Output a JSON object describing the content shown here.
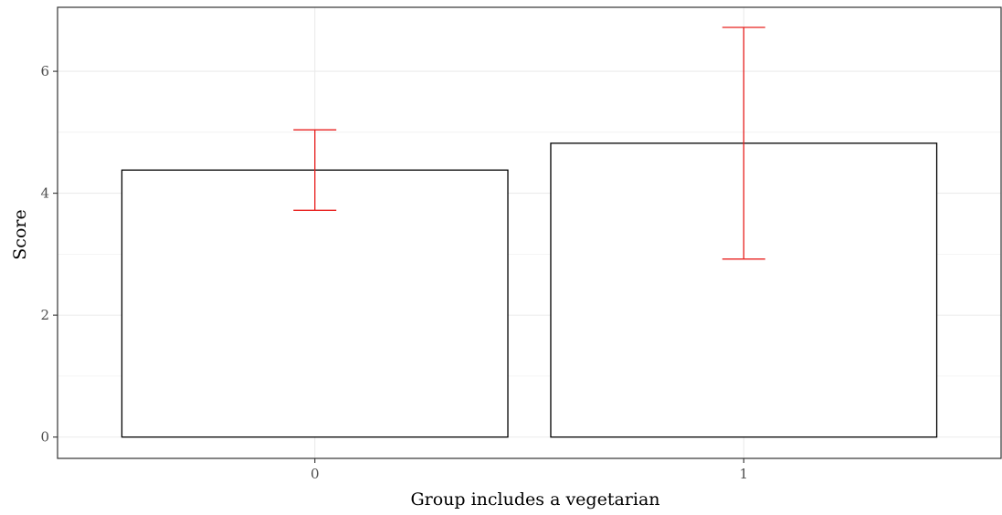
{
  "chart_data": {
    "type": "bar",
    "title": "",
    "xlabel": "Group includes a vegetarian",
    "ylabel": "Score",
    "categories": [
      "0",
      "1"
    ],
    "values": [
      4.38,
      4.82
    ],
    "error_bars": [
      {
        "low": 3.72,
        "high": 5.04
      },
      {
        "low": 2.92,
        "high": 6.72
      }
    ],
    "ylim": [
      -0.35,
      7.05
    ],
    "yticks": [
      0,
      2,
      4,
      6
    ],
    "ytick_labels": [
      "0",
      "2",
      "4",
      "6"
    ],
    "grid": true,
    "legend": "none",
    "colors": {
      "bar_fill": "#ffffff",
      "bar_stroke": "#000000",
      "error_bar": "#e8211f",
      "grid": "#ebebeb",
      "panel_border": "#333333"
    }
  }
}
